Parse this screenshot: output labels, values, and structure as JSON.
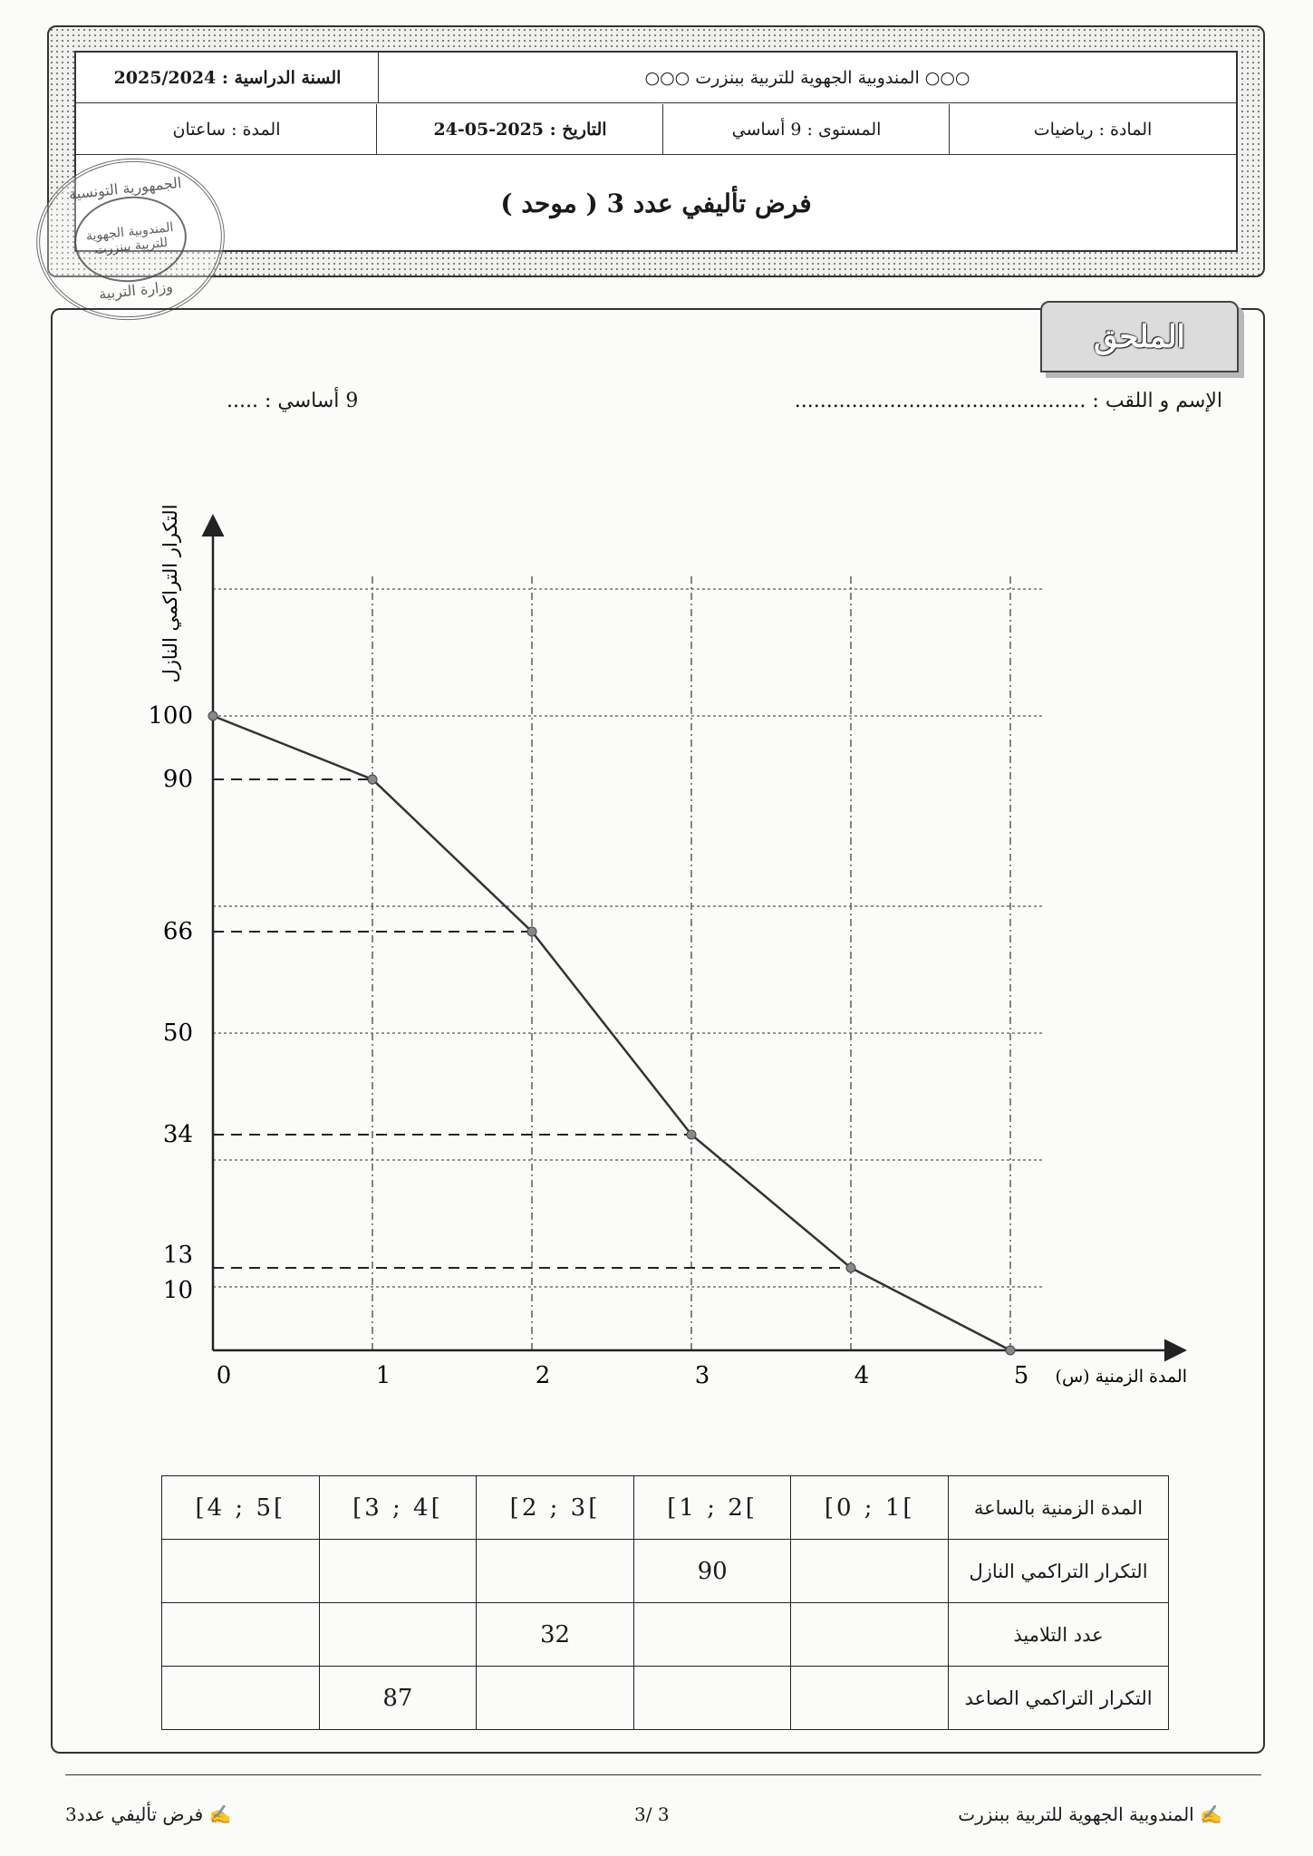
{
  "header": {
    "school_year": "السنة الدراسية : 2025/2024",
    "institution": "○○○ المندوبية الجهوية للتربية ببنزرت ○○○",
    "duration": "المدة : ساعتان",
    "date": "التاريخ : 2025-05-24",
    "level": "المستوى : 9 أساسي",
    "subject": "المادة : رياضيات",
    "title": "فرض تأليفي عدد 3 ( موحد )"
  },
  "stamp": {
    "outer": "الجمهورية التونسية",
    "inner_line1": "المندوبية الجهوية",
    "inner_line2": "للتربية ببنزرت",
    "bottom": "وزارة التربية"
  },
  "annex_label": "الملحق",
  "student": {
    "name_label": "الإسم و اللقب : ..............................................",
    "class_label": "9 أساسي : ....."
  },
  "chart_data": {
    "type": "line",
    "xlabel": "المدة الزمنية (س)",
    "ylabel": "التكرار التراكمي النازل",
    "x": [
      0,
      1,
      2,
      3,
      4,
      5
    ],
    "values": [
      100,
      90,
      66,
      34,
      13,
      0
    ],
    "x_ticks": [
      "0",
      "1",
      "2",
      "3",
      "4",
      "5"
    ],
    "y_ticks": [
      "100",
      "90",
      "66",
      "50",
      "34",
      "13",
      "10"
    ],
    "xlim": [
      0,
      5
    ],
    "ylim": [
      0,
      125
    ],
    "grid": true,
    "dashed_guides": [
      90,
      66,
      34,
      13
    ]
  },
  "table": {
    "headers": [
      "المدة الزمنية بالساعة",
      "[0 ; 1[",
      "[1 ; 2[",
      "[2 ; 3[",
      "[3 ; 4[",
      "[4 ; 5["
    ],
    "rows": [
      {
        "label": "التكرار التراكمي النازل",
        "cells": [
          "",
          "90",
          "",
          "",
          ""
        ]
      },
      {
        "label": "عدد التلاميذ",
        "cells": [
          "",
          "",
          "32",
          "",
          ""
        ]
      },
      {
        "label": "التكرار التراكمي الصاعد",
        "cells": [
          "",
          "",
          "",
          "87",
          ""
        ]
      }
    ]
  },
  "footer": {
    "right": "✍ المندوبية الجهوية للتربية ببنزرت",
    "center": "3 /3",
    "left": "✍ فرض تأليفي عدد3"
  }
}
